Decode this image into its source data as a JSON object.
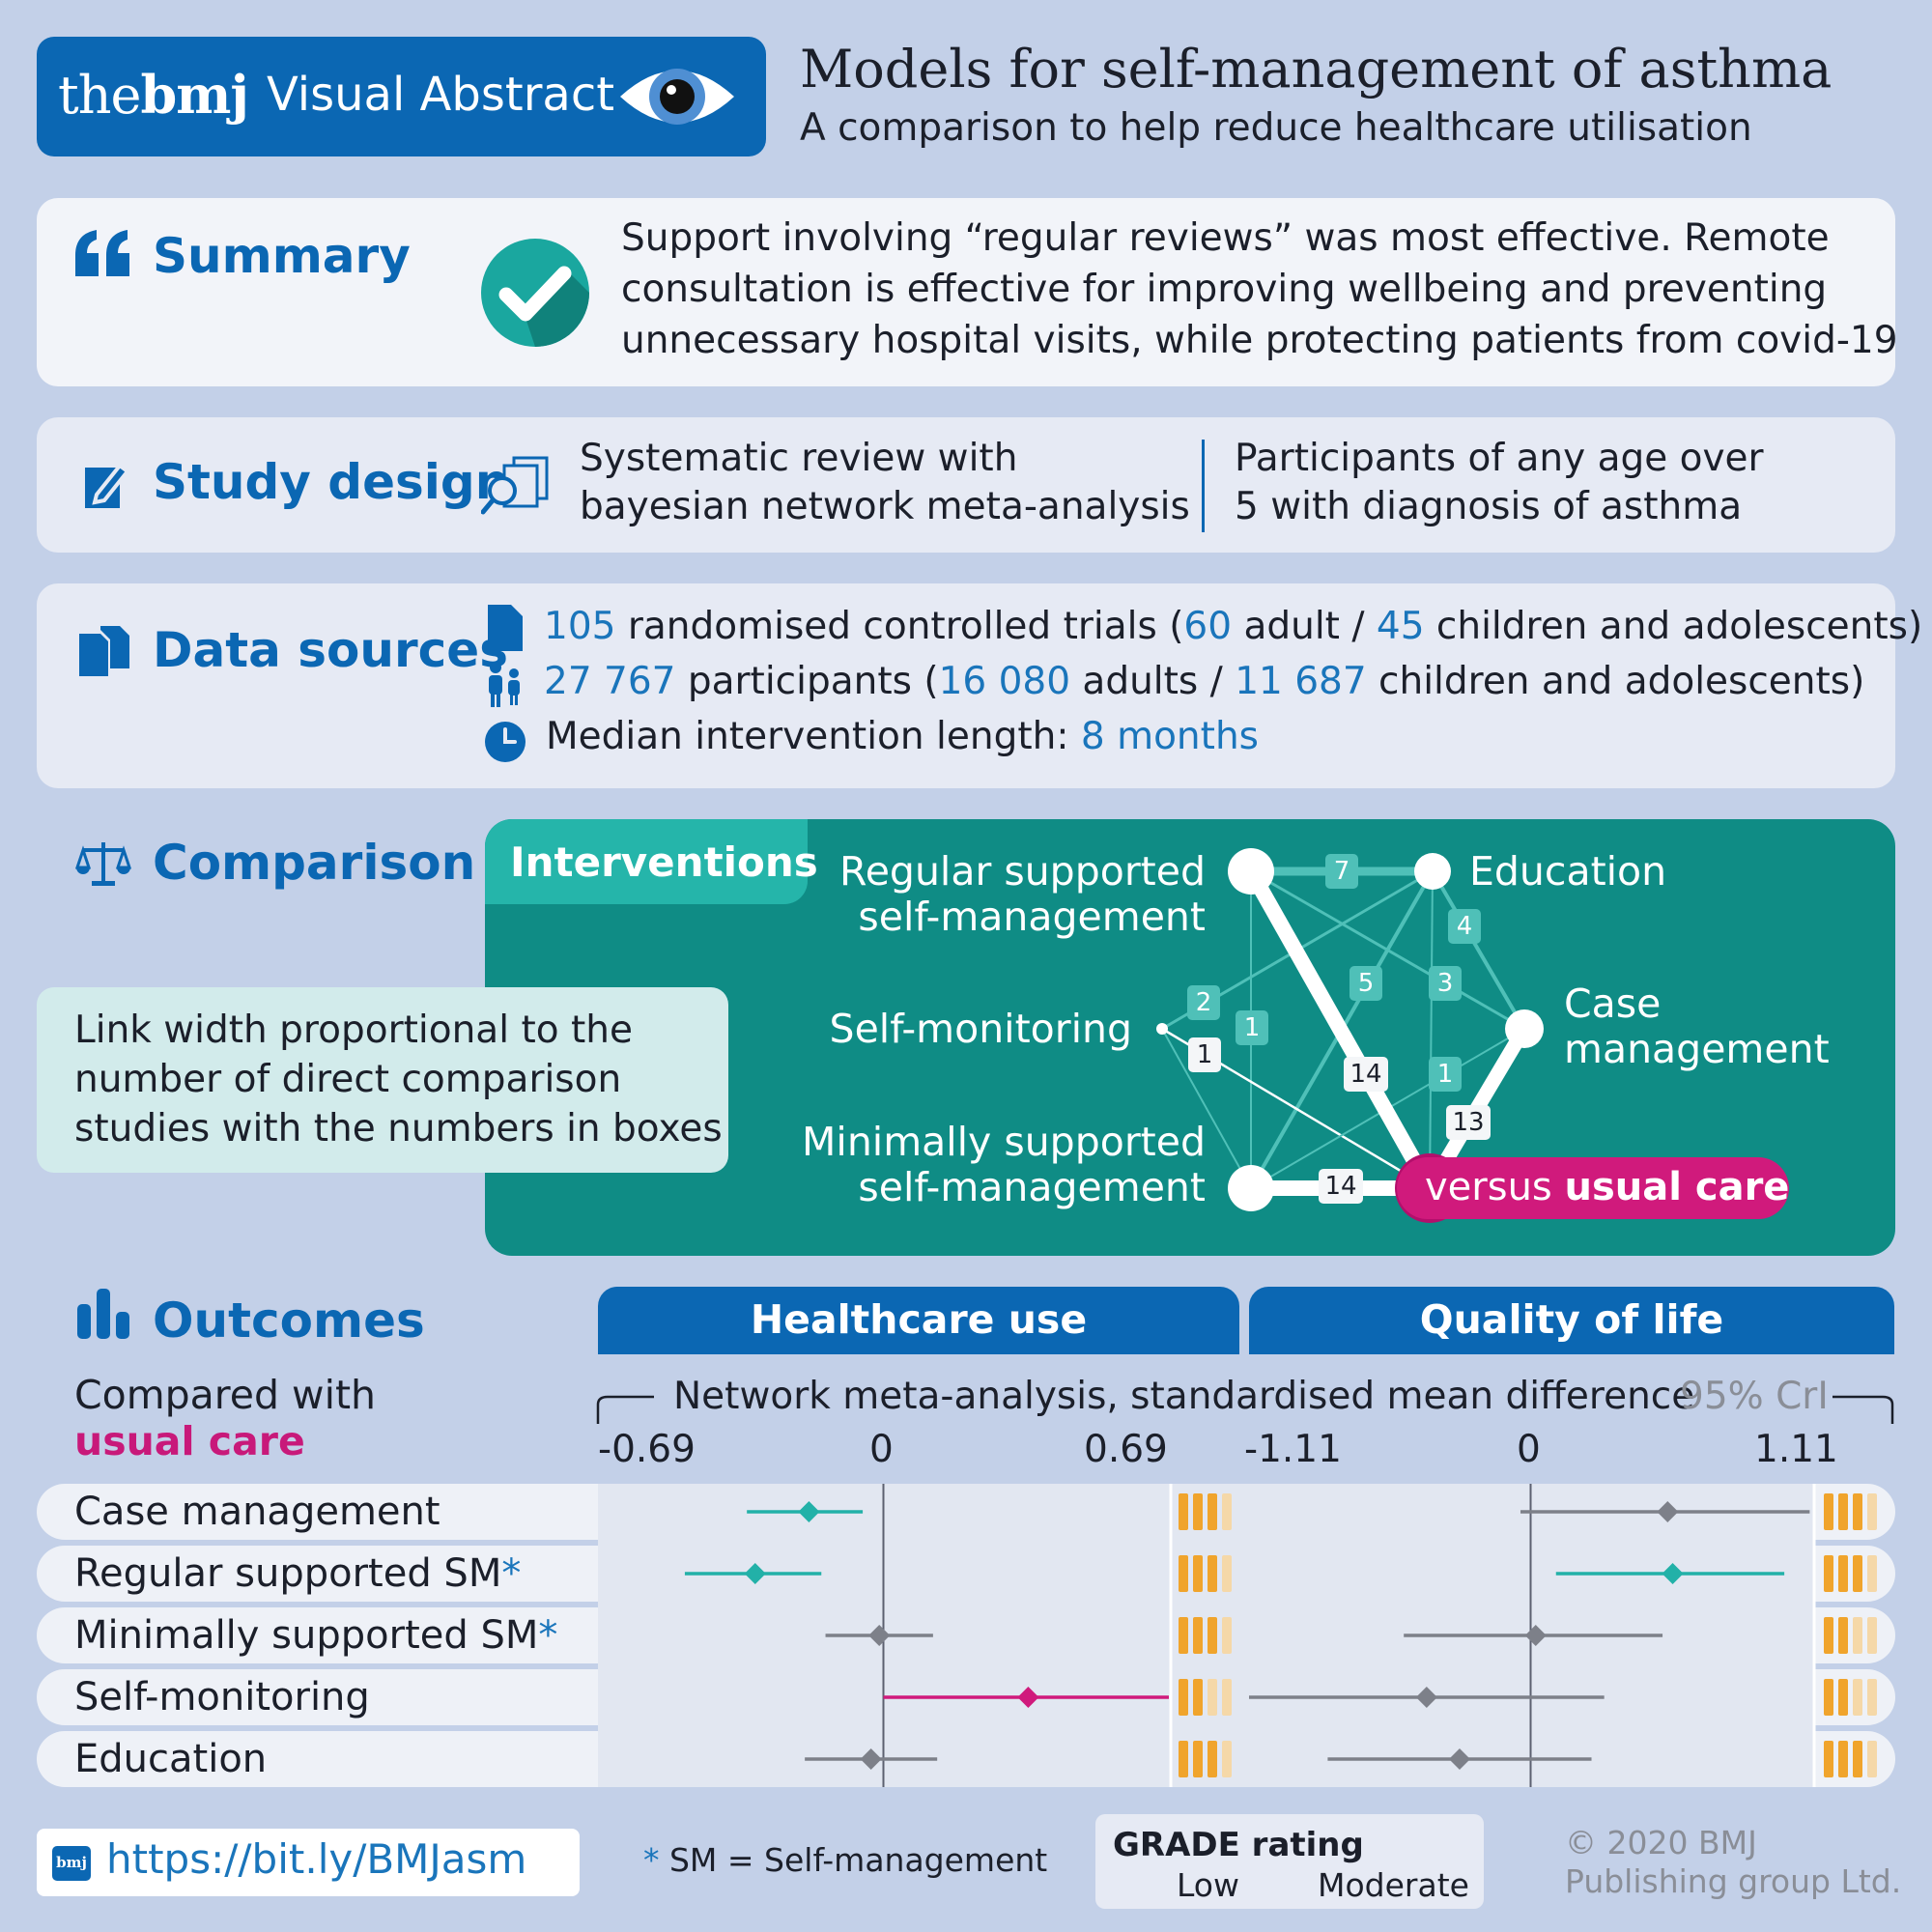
{
  "header": {
    "brand_the": "the",
    "brand_bmj": "bmj",
    "brand_label": "Visual Abstract",
    "title": "Models for self-management of asthma",
    "subtitle": "A comparison to help reduce healthcare utilisation"
  },
  "summary": {
    "heading": "Summary",
    "lines": [
      "Support involving “regular reviews” was most effective. Remote",
      "consultation is effective for improving wellbeing and preventing",
      "unnecessary hospital visits, while protecting patients from covid-19"
    ]
  },
  "study_design": {
    "heading": "Study design",
    "left_lines": [
      "Systematic review with",
      "bayesian network meta-analysis"
    ],
    "right_lines": [
      "Participants of any age over",
      "5 with diagnosis of asthma"
    ]
  },
  "data_sources": {
    "heading": "Data sources",
    "trials": {
      "n": "105",
      "t1": " randomised controlled trials (",
      "adult_n": "60",
      "t2": " adult / ",
      "child_n": "45",
      "t3": " children and adolescents)"
    },
    "participants": {
      "n": "27 767",
      "t1": " participants (",
      "adult_n": "16 080",
      "t2": " adults / ",
      "child_n": "11 687",
      "t3": " children and adolescents)"
    },
    "length": {
      "label": "Median intervention length: ",
      "value": "8 months"
    }
  },
  "comparison": {
    "heading": "Comparison",
    "tab": "Interventions",
    "note_lines": [
      "Link width proportional to the",
      "number of direct comparison",
      "studies with the numbers in boxes"
    ],
    "nodes": {
      "regular": [
        "Regular supported",
        "self-management"
      ],
      "education": "Education",
      "self_monitoring": "Self-monitoring",
      "case": [
        "Case",
        "management"
      ],
      "minimal": [
        "Minimally supported",
        "self-management"
      ],
      "usual_pre": "versus ",
      "usual_bold": "usual care"
    },
    "edge_counts": [
      "7",
      "4",
      "5",
      "3",
      "2",
      "1",
      "1",
      "14",
      "1",
      "13",
      "14"
    ]
  },
  "outcomes": {
    "heading": "Outcomes",
    "compared_line1": "Compared with",
    "compared_line2": "usual care",
    "col_healthcare": "Healthcare use",
    "col_qol": "Quality of life",
    "axis_caption": "Network meta-analysis, standardised mean difference",
    "crl_label": "95% CrI",
    "hc_ticks": [
      "-0.69",
      "0",
      "0.69"
    ],
    "qol_ticks": [
      "-1.11",
      "0",
      "1.11"
    ],
    "rows": [
      {
        "label": "Case management",
        "star": ""
      },
      {
        "label": "Regular supported SM",
        "star": "*"
      },
      {
        "label": "Minimally supported SM",
        "star": "*"
      },
      {
        "label": "Self-monitoring",
        "star": ""
      },
      {
        "label": "Education",
        "star": ""
      }
    ]
  },
  "chart_data": [
    {
      "type": "scatter",
      "title": "Healthcare use",
      "xlabel": "Network meta-analysis, standardised mean difference",
      "xlim": [
        -0.69,
        0.69
      ],
      "categories": [
        "Case management",
        "Regular supported SM",
        "Minimally supported SM",
        "Self-monitoring",
        "Education"
      ],
      "estimate": [
        -0.18,
        -0.31,
        -0.01,
        0.35,
        -0.03
      ],
      "lower": [
        -0.33,
        -0.48,
        -0.14,
        0.0,
        -0.19
      ],
      "upper": [
        -0.05,
        -0.15,
        0.12,
        0.69,
        0.13
      ],
      "colors": [
        "#22b1a8",
        "#22b1a8",
        "#7d8089",
        "#d01a7c",
        "#7d8089"
      ],
      "grade": [
        "Moderate",
        "Moderate",
        "Moderate",
        "Low",
        "Moderate"
      ]
    },
    {
      "type": "scatter",
      "title": "Quality of life",
      "xlabel": "Network meta-analysis, standardised mean difference",
      "xlim": [
        -1.11,
        1.11
      ],
      "categories": [
        "Case management",
        "Regular supported SM",
        "Minimally supported SM",
        "Self-monitoring",
        "Education"
      ],
      "estimate": [
        0.54,
        0.56,
        0.02,
        -0.41,
        -0.28
      ],
      "lower": [
        -0.04,
        0.1,
        -0.5,
        -1.11,
        -0.8
      ],
      "upper": [
        1.1,
        1.0,
        0.52,
        0.29,
        0.24
      ],
      "colors": [
        "#7d8089",
        "#22b1a8",
        "#7d8089",
        "#7d8089",
        "#7d8089"
      ],
      "grade": [
        "Moderate",
        "Moderate",
        "Low",
        "Low",
        "Moderate"
      ]
    }
  ],
  "footer": {
    "url": "https://bit.ly/BMJasm",
    "logo": "bmj",
    "star": "*",
    "sm_note": " SM = Self-management",
    "grade_title": "GRADE rating",
    "grade_low": "Low",
    "grade_moderate": "Moderate",
    "copyright_1": "© 2020 BMJ",
    "copyright_2": "Publishing group Ltd."
  },
  "colors": {
    "background": "#c3d0e8",
    "brand_blue": "#0b67b3",
    "teal": "#0f8c85",
    "teal_light": "#4fc0b8",
    "pink": "#c8197a",
    "grade_orange": "#f0a42c"
  }
}
